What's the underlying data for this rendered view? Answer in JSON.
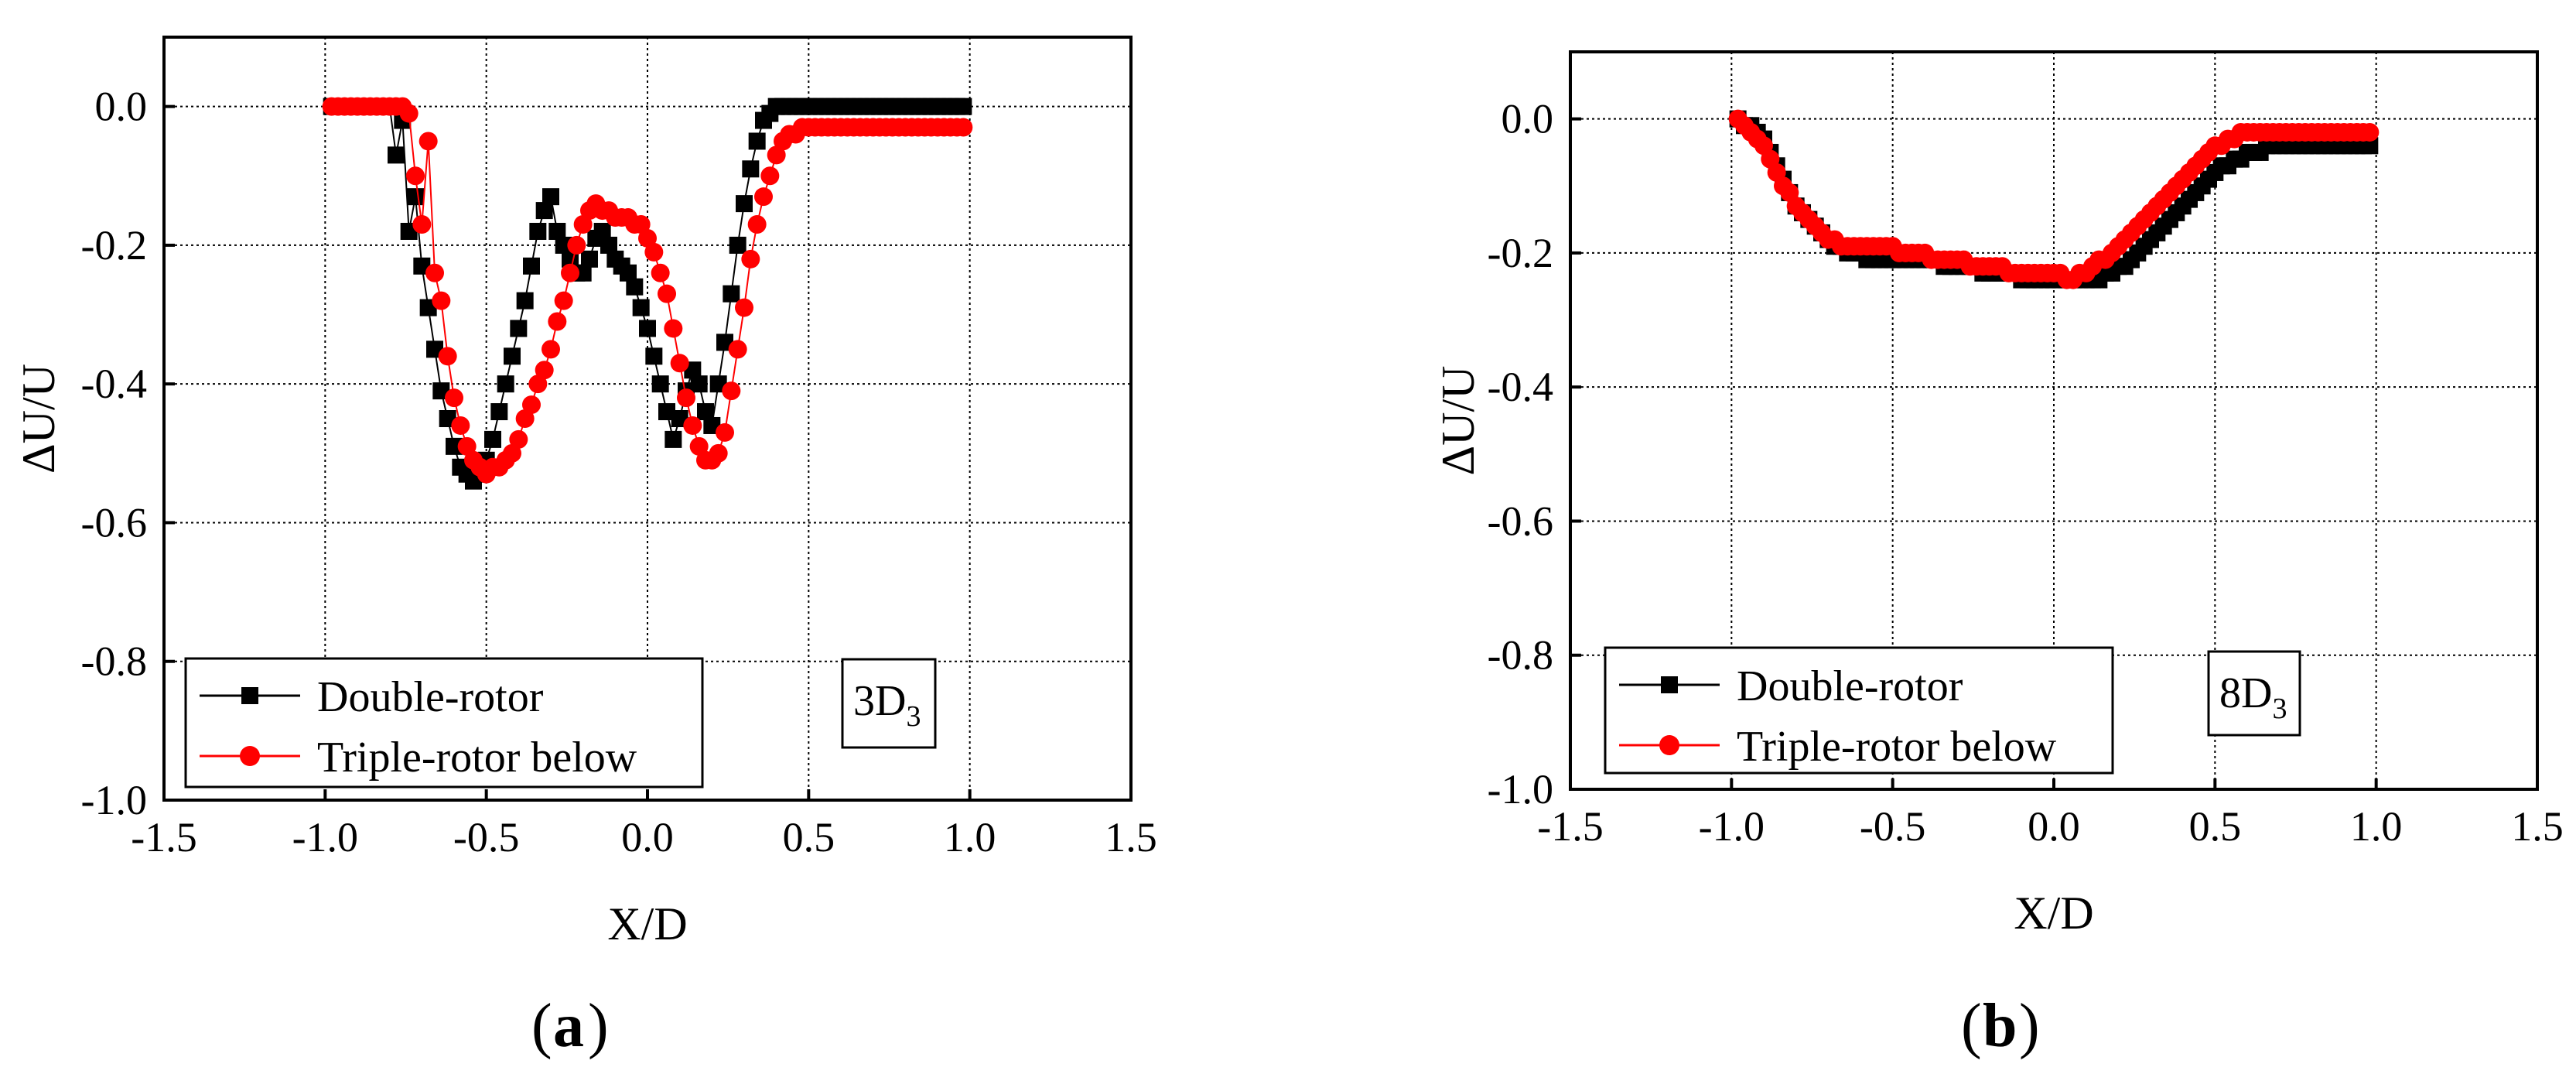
{
  "panels": [
    {
      "id": "a",
      "caption_letter": "a",
      "annotation": {
        "main": "3D",
        "sub": "3"
      },
      "chart_data": {
        "type": "scatter",
        "xlabel": "X/D",
        "ylabel": "ΔU/U",
        "xlim": [
          -1.5,
          1.5
        ],
        "ylim": [
          -1.0,
          0.1
        ],
        "xticks": [
          -1.5,
          -1.0,
          -0.5,
          0.0,
          0.5,
          1.0,
          1.5
        ],
        "xtick_labels": [
          "-1.5",
          "-1.0",
          "-0.5",
          "0.0",
          "0.5",
          "1.0",
          "1.5"
        ],
        "yticks": [
          -1.0,
          -0.8,
          -0.6,
          -0.4,
          -0.2,
          0.0
        ],
        "ytick_labels": [
          "-1.0",
          "-0.8",
          "-0.6",
          "-0.4",
          "-0.2",
          "0.0"
        ],
        "grid": true,
        "legend_position": "bottom-left",
        "series": [
          {
            "name": "Double-rotor",
            "color": "#000000",
            "marker": "square",
            "x": [
              -0.98,
              -0.96,
              -0.94,
              -0.92,
              -0.9,
              -0.88,
              -0.86,
              -0.84,
              -0.82,
              -0.8,
              -0.78,
              -0.76,
              -0.74,
              -0.72,
              -0.7,
              -0.68,
              -0.66,
              -0.64,
              -0.62,
              -0.6,
              -0.58,
              -0.56,
              -0.54,
              -0.52,
              -0.5,
              -0.48,
              -0.46,
              -0.44,
              -0.42,
              -0.4,
              -0.38,
              -0.36,
              -0.34,
              -0.32,
              -0.3,
              -0.28,
              -0.26,
              -0.24,
              -0.22,
              -0.2,
              -0.18,
              -0.16,
              -0.14,
              -0.12,
              -0.1,
              -0.08,
              -0.06,
              -0.04,
              -0.02,
              0.0,
              0.02,
              0.04,
              0.06,
              0.08,
              0.1,
              0.12,
              0.14,
              0.16,
              0.18,
              0.2,
              0.22,
              0.24,
              0.26,
              0.28,
              0.3,
              0.32,
              0.34,
              0.36,
              0.38,
              0.4,
              0.42,
              0.44,
              0.46,
              0.48,
              0.5,
              0.52,
              0.54,
              0.56,
              0.58,
              0.6,
              0.62,
              0.64,
              0.66,
              0.68,
              0.7,
              0.72,
              0.74,
              0.76,
              0.78,
              0.8,
              0.82,
              0.84,
              0.86,
              0.88,
              0.9,
              0.92,
              0.94,
              0.96,
              0.98
            ],
            "y": [
              0.0,
              0.0,
              0.0,
              0.0,
              0.0,
              0.0,
              0.0,
              0.0,
              0.0,
              0.0,
              -0.07,
              -0.02,
              -0.18,
              -0.13,
              -0.23,
              -0.29,
              -0.35,
              -0.41,
              -0.45,
              -0.49,
              -0.52,
              -0.53,
              -0.54,
              -0.53,
              -0.51,
              -0.48,
              -0.44,
              -0.4,
              -0.36,
              -0.32,
              -0.28,
              -0.23,
              -0.18,
              -0.15,
              -0.13,
              -0.18,
              -0.2,
              -0.22,
              -0.24,
              -0.24,
              -0.22,
              -0.19,
              -0.18,
              -0.2,
              -0.22,
              -0.23,
              -0.24,
              -0.26,
              -0.29,
              -0.32,
              -0.36,
              -0.4,
              -0.44,
              -0.48,
              -0.45,
              -0.41,
              -0.38,
              -0.4,
              -0.44,
              -0.46,
              -0.4,
              -0.34,
              -0.27,
              -0.2,
              -0.14,
              -0.09,
              -0.05,
              -0.02,
              -0.01,
              0.0,
              0.0,
              0.0,
              0.0,
              0.0,
              0.0,
              0.0,
              0.0,
              0.0,
              0.0,
              0.0,
              0.0,
              0.0,
              0.0,
              0.0,
              0.0,
              0.0,
              0.0,
              0.0,
              0.0,
              0.0,
              0.0,
              0.0,
              0.0,
              0.0,
              0.0,
              0.0,
              0.0,
              0.0,
              0.0
            ]
          },
          {
            "name": "Triple-rotor below",
            "color": "#ff0000",
            "marker": "circle",
            "x": [
              -0.98,
              -0.96,
              -0.94,
              -0.92,
              -0.9,
              -0.88,
              -0.86,
              -0.84,
              -0.82,
              -0.8,
              -0.78,
              -0.76,
              -0.74,
              -0.72,
              -0.7,
              -0.68,
              -0.66,
              -0.64,
              -0.62,
              -0.6,
              -0.58,
              -0.56,
              -0.54,
              -0.52,
              -0.5,
              -0.48,
              -0.46,
              -0.44,
              -0.42,
              -0.4,
              -0.38,
              -0.36,
              -0.34,
              -0.32,
              -0.3,
              -0.28,
              -0.26,
              -0.24,
              -0.22,
              -0.2,
              -0.18,
              -0.16,
              -0.14,
              -0.12,
              -0.1,
              -0.08,
              -0.06,
              -0.04,
              -0.02,
              0.0,
              0.02,
              0.04,
              0.06,
              0.08,
              0.1,
              0.12,
              0.14,
              0.16,
              0.18,
              0.2,
              0.22,
              0.24,
              0.26,
              0.28,
              0.3,
              0.32,
              0.34,
              0.36,
              0.38,
              0.4,
              0.42,
              0.44,
              0.46,
              0.48,
              0.5,
              0.52,
              0.54,
              0.56,
              0.58,
              0.6,
              0.62,
              0.64,
              0.66,
              0.68,
              0.7,
              0.72,
              0.74,
              0.76,
              0.78,
              0.8,
              0.82,
              0.84,
              0.86,
              0.88,
              0.9,
              0.92,
              0.94,
              0.96,
              0.98
            ],
            "y": [
              0.0,
              0.0,
              0.0,
              0.0,
              0.0,
              0.0,
              0.0,
              0.0,
              0.0,
              0.0,
              0.0,
              0.0,
              -0.01,
              -0.1,
              -0.17,
              -0.05,
              -0.24,
              -0.28,
              -0.36,
              -0.42,
              -0.46,
              -0.49,
              -0.51,
              -0.52,
              -0.53,
              -0.52,
              -0.52,
              -0.51,
              -0.5,
              -0.48,
              -0.45,
              -0.43,
              -0.4,
              -0.38,
              -0.35,
              -0.31,
              -0.28,
              -0.24,
              -0.2,
              -0.17,
              -0.15,
              -0.14,
              -0.15,
              -0.15,
              -0.16,
              -0.16,
              -0.16,
              -0.17,
              -0.17,
              -0.19,
              -0.21,
              -0.24,
              -0.27,
              -0.32,
              -0.37,
              -0.42,
              -0.46,
              -0.49,
              -0.51,
              -0.51,
              -0.5,
              -0.47,
              -0.41,
              -0.35,
              -0.29,
              -0.22,
              -0.17,
              -0.13,
              -0.1,
              -0.07,
              -0.05,
              -0.04,
              -0.04,
              -0.03,
              -0.03,
              -0.03,
              -0.03,
              -0.03,
              -0.03,
              -0.03,
              -0.03,
              -0.03,
              -0.03,
              -0.03,
              -0.03,
              -0.03,
              -0.03,
              -0.03,
              -0.03,
              -0.03,
              -0.03,
              -0.03,
              -0.03,
              -0.03,
              -0.03,
              -0.03,
              -0.03,
              -0.03,
              -0.03
            ]
          }
        ]
      }
    },
    {
      "id": "b",
      "caption_letter": "b",
      "annotation": {
        "main": "8D",
        "sub": "3"
      },
      "chart_data": {
        "type": "scatter",
        "xlabel": "X/D",
        "ylabel": "ΔU/U",
        "xlim": [
          -1.5,
          1.5
        ],
        "ylim": [
          -1.0,
          0.1
        ],
        "xticks": [
          -1.5,
          -1.0,
          -0.5,
          0.0,
          0.5,
          1.0,
          1.5
        ],
        "xtick_labels": [
          "-1.5",
          "-1.0",
          "-0.5",
          "0.0",
          "0.5",
          "1.0",
          "1.5"
        ],
        "yticks": [
          -1.0,
          -0.8,
          -0.6,
          -0.4,
          -0.2,
          0.0
        ],
        "ytick_labels": [
          "-1.0",
          "-0.8",
          "-0.6",
          "-0.4",
          "-0.2",
          "0.0"
        ],
        "grid": true,
        "legend_position": "bottom-left",
        "series": [
          {
            "name": "Double-rotor",
            "color": "#000000",
            "marker": "square",
            "x": [
              -0.98,
              -0.96,
              -0.94,
              -0.92,
              -0.9,
              -0.88,
              -0.86,
              -0.84,
              -0.82,
              -0.8,
              -0.78,
              -0.76,
              -0.74,
              -0.72,
              -0.7,
              -0.68,
              -0.66,
              -0.64,
              -0.62,
              -0.6,
              -0.58,
              -0.56,
              -0.54,
              -0.52,
              -0.5,
              -0.48,
              -0.46,
              -0.44,
              -0.42,
              -0.4,
              -0.38,
              -0.36,
              -0.34,
              -0.32,
              -0.3,
              -0.28,
              -0.26,
              -0.24,
              -0.22,
              -0.2,
              -0.18,
              -0.16,
              -0.14,
              -0.12,
              -0.1,
              -0.08,
              -0.06,
              -0.04,
              -0.02,
              0.0,
              0.02,
              0.04,
              0.06,
              0.08,
              0.1,
              0.12,
              0.14,
              0.16,
              0.18,
              0.2,
              0.22,
              0.24,
              0.26,
              0.28,
              0.3,
              0.32,
              0.34,
              0.36,
              0.38,
              0.4,
              0.42,
              0.44,
              0.46,
              0.48,
              0.5,
              0.52,
              0.54,
              0.56,
              0.58,
              0.6,
              0.62,
              0.64,
              0.66,
              0.68,
              0.7,
              0.72,
              0.74,
              0.76,
              0.78,
              0.8,
              0.82,
              0.84,
              0.86,
              0.88,
              0.9,
              0.92,
              0.94,
              0.96,
              0.98
            ],
            "y": [
              0.0,
              -0.01,
              -0.01,
              -0.02,
              -0.03,
              -0.05,
              -0.07,
              -0.09,
              -0.11,
              -0.13,
              -0.14,
              -0.15,
              -0.16,
              -0.17,
              -0.18,
              -0.19,
              -0.19,
              -0.2,
              -0.2,
              -0.2,
              -0.21,
              -0.21,
              -0.21,
              -0.21,
              -0.21,
              -0.21,
              -0.21,
              -0.21,
              -0.21,
              -0.21,
              -0.21,
              -0.21,
              -0.22,
              -0.22,
              -0.22,
              -0.22,
              -0.22,
              -0.22,
              -0.23,
              -0.23,
              -0.23,
              -0.23,
              -0.23,
              -0.23,
              -0.24,
              -0.24,
              -0.24,
              -0.24,
              -0.24,
              -0.24,
              -0.24,
              -0.24,
              -0.24,
              -0.24,
              -0.24,
              -0.24,
              -0.24,
              -0.23,
              -0.23,
              -0.22,
              -0.22,
              -0.21,
              -0.2,
              -0.19,
              -0.18,
              -0.17,
              -0.16,
              -0.15,
              -0.14,
              -0.13,
              -0.12,
              -0.11,
              -0.1,
              -0.09,
              -0.08,
              -0.07,
              -0.07,
              -0.06,
              -0.06,
              -0.05,
              -0.05,
              -0.05,
              -0.04,
              -0.04,
              -0.04,
              -0.04,
              -0.04,
              -0.04,
              -0.04,
              -0.04,
              -0.04,
              -0.04,
              -0.04,
              -0.04,
              -0.04,
              -0.04,
              -0.04,
              -0.04,
              -0.04
            ]
          },
          {
            "name": "Triple-rotor below",
            "color": "#ff0000",
            "marker": "circle",
            "x": [
              -0.98,
              -0.96,
              -0.94,
              -0.92,
              -0.9,
              -0.88,
              -0.86,
              -0.84,
              -0.82,
              -0.8,
              -0.78,
              -0.76,
              -0.74,
              -0.72,
              -0.7,
              -0.68,
              -0.66,
              -0.64,
              -0.62,
              -0.6,
              -0.58,
              -0.56,
              -0.54,
              -0.52,
              -0.5,
              -0.48,
              -0.46,
              -0.44,
              -0.42,
              -0.4,
              -0.38,
              -0.36,
              -0.34,
              -0.32,
              -0.3,
              -0.28,
              -0.26,
              -0.24,
              -0.22,
              -0.2,
              -0.18,
              -0.16,
              -0.14,
              -0.12,
              -0.1,
              -0.08,
              -0.06,
              -0.04,
              -0.02,
              0.0,
              0.02,
              0.04,
              0.06,
              0.08,
              0.1,
              0.12,
              0.14,
              0.16,
              0.18,
              0.2,
              0.22,
              0.24,
              0.26,
              0.28,
              0.3,
              0.32,
              0.34,
              0.36,
              0.38,
              0.4,
              0.42,
              0.44,
              0.46,
              0.48,
              0.5,
              0.52,
              0.54,
              0.56,
              0.58,
              0.6,
              0.62,
              0.64,
              0.66,
              0.68,
              0.7,
              0.72,
              0.74,
              0.76,
              0.78,
              0.8,
              0.82,
              0.84,
              0.86,
              0.88,
              0.9,
              0.92,
              0.94,
              0.96,
              0.98
            ],
            "y": [
              0.0,
              -0.01,
              -0.02,
              -0.03,
              -0.04,
              -0.06,
              -0.08,
              -0.1,
              -0.11,
              -0.13,
              -0.14,
              -0.15,
              -0.16,
              -0.17,
              -0.18,
              -0.18,
              -0.19,
              -0.19,
              -0.19,
              -0.19,
              -0.19,
              -0.19,
              -0.19,
              -0.19,
              -0.19,
              -0.2,
              -0.2,
              -0.2,
              -0.2,
              -0.2,
              -0.21,
              -0.21,
              -0.21,
              -0.21,
              -0.21,
              -0.21,
              -0.22,
              -0.22,
              -0.22,
              -0.22,
              -0.22,
              -0.22,
              -0.23,
              -0.23,
              -0.23,
              -0.23,
              -0.23,
              -0.23,
              -0.23,
              -0.23,
              -0.23,
              -0.24,
              -0.24,
              -0.23,
              -0.23,
              -0.22,
              -0.21,
              -0.21,
              -0.2,
              -0.19,
              -0.18,
              -0.17,
              -0.16,
              -0.15,
              -0.14,
              -0.13,
              -0.12,
              -0.11,
              -0.1,
              -0.09,
              -0.08,
              -0.07,
              -0.06,
              -0.05,
              -0.04,
              -0.04,
              -0.03,
              -0.03,
              -0.02,
              -0.02,
              -0.02,
              -0.02,
              -0.02,
              -0.02,
              -0.02,
              -0.02,
              -0.02,
              -0.02,
              -0.02,
              -0.02,
              -0.02,
              -0.02,
              -0.02,
              -0.02,
              -0.02,
              -0.02,
              -0.02,
              -0.02,
              -0.02
            ]
          }
        ]
      }
    }
  ]
}
